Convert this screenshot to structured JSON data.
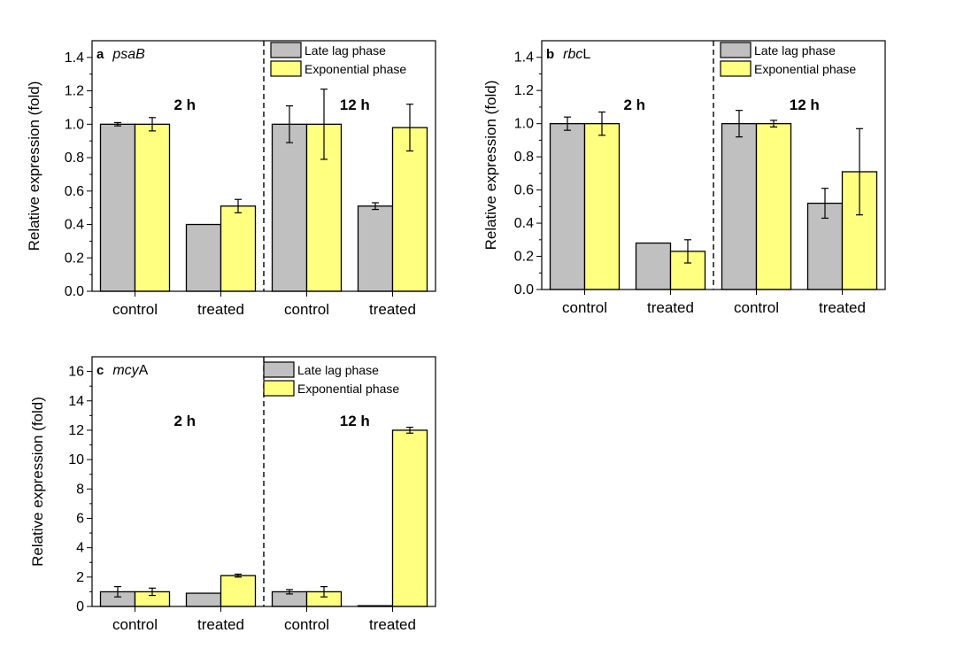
{
  "chart_data": [
    {
      "type": "bar",
      "panel_letter": "a",
      "gene_italic": "psaB",
      "gene_plain": "",
      "ylabel": "Relative expression (fold)",
      "xlabel": "",
      "ylim": [
        0,
        1.5
      ],
      "yticks": [
        0.0,
        0.2,
        0.4,
        0.6,
        0.8,
        1.0,
        1.2,
        1.4
      ],
      "ytick_labels": [
        "0.0",
        "0.2",
        "0.4",
        "0.6",
        "0.8",
        "1.0",
        "1.2",
        "1.4"
      ],
      "categories": [
        "control",
        "treated",
        "control",
        "treated"
      ],
      "time_labels": [
        "2 h",
        "12 h"
      ],
      "series": [
        {
          "name": "Late lag phase",
          "color": "#c0c0c0",
          "values": [
            1.0,
            0.4,
            1.0,
            0.51
          ],
          "errors": [
            0.01,
            0.0,
            0.11,
            0.02
          ]
        },
        {
          "name": "Exponential phase",
          "color": "#ffff80",
          "values": [
            1.0,
            0.51,
            1.0,
            0.98
          ],
          "errors": [
            0.04,
            0.04,
            0.21,
            0.14
          ]
        }
      ],
      "legend_position": "top-right"
    },
    {
      "type": "bar",
      "panel_letter": "b",
      "gene_italic": "rbc",
      "gene_plain": "L",
      "ylabel": "Relative expression (fold)",
      "xlabel": "",
      "ylim": [
        0,
        1.5
      ],
      "yticks": [
        0.0,
        0.2,
        0.4,
        0.6,
        0.8,
        1.0,
        1.2,
        1.4
      ],
      "ytick_labels": [
        "0.0",
        "0.2",
        "0.4",
        "0.6",
        "0.8",
        "1.0",
        "1.2",
        "1.4"
      ],
      "categories": [
        "control",
        "treated",
        "control",
        "treated"
      ],
      "time_labels": [
        "2 h",
        "12 h"
      ],
      "series": [
        {
          "name": "Late lag phase",
          "color": "#c0c0c0",
          "values": [
            1.0,
            0.28,
            1.0,
            0.52
          ],
          "errors": [
            0.04,
            0.0,
            0.08,
            0.09
          ]
        },
        {
          "name": "Exponential phase",
          "color": "#ffff80",
          "values": [
            1.0,
            0.23,
            1.0,
            0.71
          ],
          "errors": [
            0.07,
            0.07,
            0.02,
            0.26
          ]
        }
      ],
      "legend_position": "top-right"
    },
    {
      "type": "bar",
      "panel_letter": "c",
      "gene_italic": "mcy",
      "gene_plain": "A",
      "ylabel": "Relative expression (fold)",
      "xlabel": "",
      "ylim": [
        0,
        17
      ],
      "yticks": [
        0,
        2,
        4,
        6,
        8,
        10,
        12,
        14,
        16
      ],
      "ytick_labels": [
        "0",
        "2",
        "4",
        "6",
        "8",
        "10",
        "12",
        "14",
        "16"
      ],
      "categories": [
        "control",
        "treated",
        "control",
        "treated"
      ],
      "time_labels": [
        "2 h",
        "12 h"
      ],
      "series": [
        {
          "name": "Late lag phase",
          "color": "#c0c0c0",
          "values": [
            1.0,
            0.9,
            1.0,
            0.05
          ],
          "errors": [
            0.35,
            0.0,
            0.15,
            0.0
          ]
        },
        {
          "name": "Exponential phase",
          "color": "#ffff80",
          "values": [
            1.0,
            2.1,
            1.0,
            12.0
          ],
          "errors": [
            0.25,
            0.1,
            0.35,
            0.2
          ]
        }
      ],
      "legend_position": "top-right"
    }
  ]
}
